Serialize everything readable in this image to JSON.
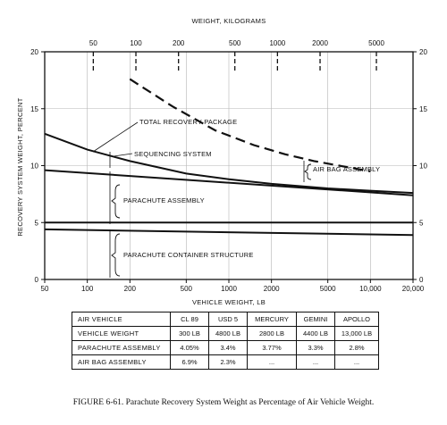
{
  "chart_data": {
    "type": "line",
    "title": "",
    "xlabel": "VEHICLE WEIGHT, LB",
    "ylabel": "RECOVERY SYSTEM WEIGHT, PERCENT",
    "top_axis_label": "WEIGHT, KILOGRAMS",
    "x_scale": "log",
    "xlim": [
      50,
      20000
    ],
    "ylim": [
      0,
      20
    ],
    "x_ticks": [
      50,
      100,
      200,
      500,
      1000,
      2000,
      5000,
      10000,
      20000
    ],
    "x_tick_labels": [
      "50",
      "100",
      "200",
      "500",
      "1000",
      "2000",
      "5000",
      "10,000",
      "20,000"
    ],
    "y_ticks": [
      0,
      5,
      10,
      15,
      20
    ],
    "y_tick_labels": [
      "0",
      "5",
      "10",
      "15",
      "20"
    ],
    "top_ticks_kg": [
      50,
      100,
      200,
      500,
      1000,
      2000,
      5000
    ],
    "top_tick_labels": [
      "50",
      "100",
      "200",
      "500",
      "1000",
      "2000",
      "5000"
    ],
    "grid": true,
    "series": [
      {
        "style": "solid",
        "x": [
          50,
          100,
          200,
          500,
          1000,
          2000,
          5000,
          10000,
          20000
        ],
        "y": [
          12.8,
          11.4,
          10.4,
          9.3,
          8.8,
          8.4,
          8.0,
          7.8,
          7.6
        ]
      },
      {
        "style": "solid",
        "x": [
          50,
          20000
        ],
        "y": [
          9.6,
          7.4
        ]
      },
      {
        "style": "solid",
        "x": [
          50,
          20000
        ],
        "y": [
          5.0,
          5.0
        ]
      },
      {
        "style": "solid",
        "x": [
          50,
          20000
        ],
        "y": [
          4.4,
          3.9
        ]
      },
      {
        "style": "dashed",
        "x": [
          200,
          400,
          800,
          1500,
          2500,
          4000,
          6000,
          10000
        ],
        "y": [
          17.6,
          15.2,
          13.1,
          11.8,
          11.0,
          10.4,
          10.0,
          9.5
        ]
      }
    ],
    "annotations": [
      {
        "text": "TOTAL RECOVERY PACKAGE"
      },
      {
        "text": "SEQUENCING SYSTEM"
      },
      {
        "text": "AIR BAG ASSEMBLY"
      },
      {
        "text": "PARACHUTE ASSEMBLY"
      },
      {
        "text": "PARACHUTE CONTAINER STRUCTURE"
      }
    ]
  },
  "table": {
    "rows": [
      {
        "label": "AIR VEHICLE",
        "cells": [
          "CL 89",
          "USD 5",
          "MERCURY",
          "GEMINI",
          "APOLLO"
        ]
      },
      {
        "label": "VEHICLE WEIGHT",
        "cells": [
          "300 LB",
          "4800 LB",
          "2800 LB",
          "4400 LB",
          "13,000 LB"
        ]
      },
      {
        "label": "PARACHUTE ASSEMBLY",
        "cells": [
          "4.05%",
          "3.4%",
          "3.77%",
          "3.3%",
          "2.8%"
        ]
      },
      {
        "label": "AIR BAG ASSEMBLY",
        "cells": [
          "6.9%",
          "2.3%",
          "...",
          "...",
          "..."
        ]
      }
    ]
  },
  "caption": "FIGURE 6-61. Parachute Recovery System Weight as Percentage of Air Vehicle Weight."
}
